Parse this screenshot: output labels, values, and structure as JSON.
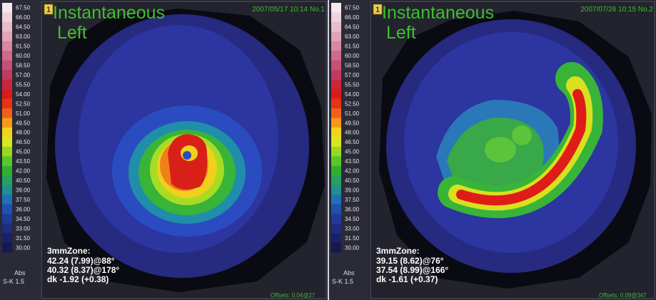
{
  "scale": {
    "labels": [
      "67.50",
      "66.00",
      "64.50",
      "63.00",
      "61.50",
      "60.00",
      "58.50",
      "57.00",
      "55.50",
      "54.00",
      "52.50",
      "51.00",
      "49.50",
      "48.00",
      "46.50",
      "45.00",
      "43.50",
      "42.00",
      "40.50",
      "39.00",
      "37.50",
      "36.00",
      "34.50",
      "33.00",
      "31.50",
      "30.00"
    ],
    "colors": [
      "#f4e8ee",
      "#eed2dc",
      "#e8bccc",
      "#e2a2b8",
      "#d986a2",
      "#cf6a8c",
      "#c65076",
      "#c23a5e",
      "#c8283c",
      "#d81c1c",
      "#e83218",
      "#f06018",
      "#f49a18",
      "#f2d21c",
      "#d8e820",
      "#98d820",
      "#58c828",
      "#30b030",
      "#28a060",
      "#20908e",
      "#2070b8",
      "#2050b0",
      "#203c98",
      "#202c80",
      "#1c2068",
      "#181850"
    ],
    "unit": "Abs",
    "step": "S-K 1.5"
  },
  "panels": [
    {
      "badge": "1",
      "title": "Instantaneous",
      "subtitle": "Left",
      "timestamp": "2007/05/17 10:14 No.1",
      "zone": {
        "heading": "3mmZone:",
        "lines": [
          "42.24 (7.99)@88°",
          "40.32 (8.37)@178°",
          "dk -1.92 (+0.38)"
        ]
      },
      "footer": "Offsets: 0.04@27"
    },
    {
      "badge": "1",
      "title": "Instantaneous",
      "subtitle": "Left",
      "timestamp": "2007/07/26 10:15 No.2",
      "zone": {
        "heading": "3mmZone:",
        "lines": [
          "39.15 (8.62)@76°",
          "37.54 (8.99)@166°",
          "dk -1.61 (+0.37)"
        ]
      },
      "footer": "Offsets: 0.09@347"
    }
  ]
}
